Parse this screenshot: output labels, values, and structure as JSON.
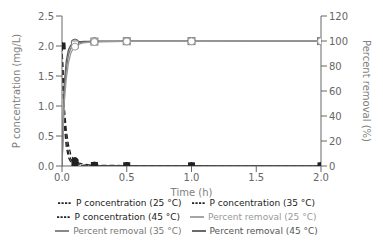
{
  "chart_data": {
    "type": "line",
    "xlabel": "Time (h)",
    "ylabel": "P concentration (mg/L)",
    "y2label": "Percent removal (%)",
    "x": [
      0,
      0.017,
      0.033,
      0.05,
      0.067,
      0.083,
      0.1,
      0.117,
      0.133,
      0.15,
      0.167,
      0.2,
      0.25,
      0.3,
      0.4,
      0.5,
      0.75,
      1.0,
      1.5,
      2.0
    ],
    "xlim": [
      0,
      2.0
    ],
    "xticks": [
      {
        "value": 0,
        "label": "0.0"
      },
      0.5,
      {
        "value": 1,
        "label": "1.0"
      },
      1.5,
      {
        "value": 2,
        "label": "2.0"
      }
    ],
    "ylim": [
      0,
      2.5
    ],
    "yticks": [
      {
        "value": 0,
        "label": "0.0"
      },
      0.5,
      {
        "value": 1,
        "label": "1.0"
      },
      1.5,
      {
        "value": 2,
        "label": "2.0"
      },
      2.5
    ],
    "y2lim": [
      0,
      120
    ],
    "y2ticks": [
      0,
      20,
      40,
      60,
      80,
      100,
      120
    ],
    "grid": false,
    "legend": "bottom",
    "series": [
      {
        "name": "P concentration (45 °C)",
        "color": "#222222",
        "marker": "triangle",
        "line_style": "dashed",
        "values": [
          2.0,
          0.7,
          0.32,
          0.14,
          0.07,
          0.04,
          0.025,
          0.016,
          0.012,
          0.009,
          0.007,
          0.005,
          0.004,
          0.003,
          0.002,
          0.002,
          0.001,
          0.001,
          0.001,
          0.001
        ]
      },
      {
        "name": "P concentration (35 °C)",
        "color": "#222222",
        "marker": "square",
        "line_style": "dashed",
        "values": [
          2.0,
          0.85,
          0.45,
          0.22,
          0.12,
          0.08,
          0.055,
          0.04,
          0.03,
          0.023,
          0.018,
          0.012,
          0.009,
          0.007,
          0.005,
          0.004,
          0.003,
          0.002,
          0.002,
          0.002
        ]
      },
      {
        "name": "P concentration (25 °C)",
        "color": "#222222",
        "marker": "circle",
        "line_style": "dashed",
        "values": [
          2.0,
          1.0,
          0.6,
          0.35,
          0.2,
          0.13,
          0.09,
          0.065,
          0.05,
          0.038,
          0.03,
          0.022,
          0.016,
          0.012,
          0.009,
          0.007,
          0.005,
          0.004,
          0.003,
          0.003
        ]
      },
      {
        "name": "Percent removal (45 °C)",
        "color": "#555555",
        "marker": "circle",
        "line_style": "solid",
        "axis": "y2",
        "values": [
          0,
          65,
          84,
          93,
          96.5,
          98,
          98.75,
          99.2,
          99.4,
          99.55,
          99.65,
          99.75,
          99.8,
          99.85,
          99.9,
          99.9,
          99.95,
          99.95,
          99.95,
          99.95
        ]
      },
      {
        "name": "Percent removal (35 °C)",
        "color": "#777777",
        "marker": "square",
        "line_style": "solid",
        "axis": "y2",
        "values": [
          0,
          57.5,
          77.5,
          89,
          94,
          96,
          97.25,
          98.0,
          98.5,
          98.85,
          99.1,
          99.4,
          99.55,
          99.65,
          99.75,
          99.8,
          99.85,
          99.9,
          99.9,
          99.9
        ]
      },
      {
        "name": "Percent removal (25 °C)",
        "color": "#999999",
        "marker": "circle",
        "line_style": "solid",
        "axis": "y2",
        "values": [
          0,
          50,
          70,
          82.5,
          90,
          93.5,
          95.5,
          96.75,
          97.5,
          98.1,
          98.5,
          98.9,
          99.2,
          99.4,
          99.55,
          99.65,
          99.75,
          99.8,
          99.85,
          99.85
        ]
      }
    ]
  }
}
